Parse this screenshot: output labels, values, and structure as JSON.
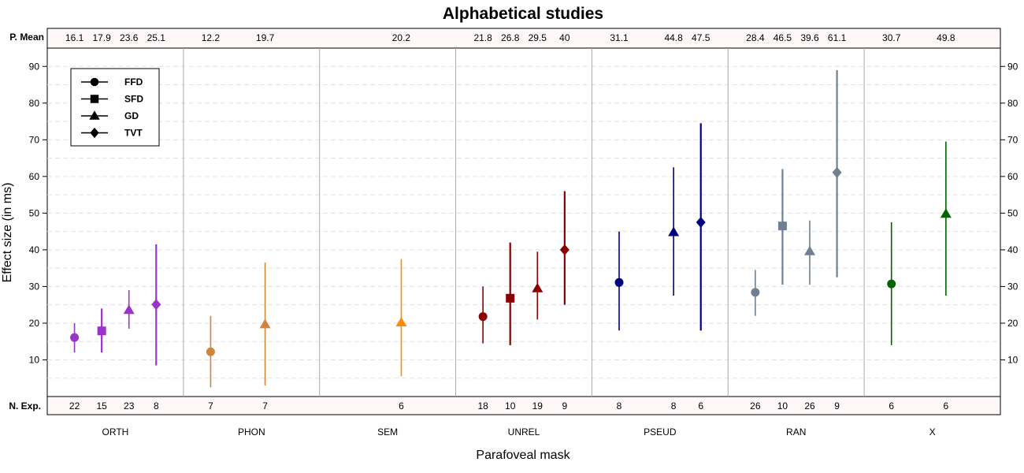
{
  "chart_data": {
    "type": "scatter",
    "title": "Alphabetical studies",
    "xlabel": "Parafoveal mask",
    "ylabel": "Effect size (in ms)",
    "ylim": [
      0,
      95
    ],
    "yticks": [
      10,
      20,
      30,
      40,
      50,
      60,
      70,
      80,
      90
    ],
    "grid": true,
    "legend_position": "top-left",
    "top_strip_label": "P. Mean",
    "bottom_strip_label": "N. Exp.",
    "legend": [
      {
        "label": "FFD",
        "marker": "circle"
      },
      {
        "label": "SFD",
        "marker": "square"
      },
      {
        "label": "GD",
        "marker": "triangle"
      },
      {
        "label": "TVT",
        "marker": "diamond"
      }
    ],
    "groups": [
      {
        "name": "ORTH",
        "color": "#9933cc",
        "points": [
          {
            "measure": "FFD",
            "mean": 16.1,
            "lower": 12,
            "upper": 20,
            "n": 22,
            "mean_label": "16.1",
            "n_label": "22"
          },
          {
            "measure": "SFD",
            "mean": 17.9,
            "lower": 12,
            "upper": 24,
            "n": 15,
            "mean_label": "17.9",
            "n_label": "15"
          },
          {
            "measure": "GD",
            "mean": 23.6,
            "lower": 18.5,
            "upper": 29,
            "n": 23,
            "mean_label": "23.6",
            "n_label": "23"
          },
          {
            "measure": "TVT",
            "mean": 25.1,
            "lower": 8.5,
            "upper": 41.5,
            "n": 8,
            "mean_label": "25.1",
            "n_label": "8"
          }
        ]
      },
      {
        "name": "PHON",
        "color": "#cd853f",
        "points": [
          {
            "measure": "FFD",
            "mean": 12.2,
            "lower": 2.5,
            "upper": 22,
            "n": 7,
            "mean_label": "12.2",
            "n_label": "7"
          },
          {
            "measure": "GD",
            "mean": 19.7,
            "lower": 3,
            "upper": 36.5,
            "n": 7,
            "mean_label": "19.7",
            "n_label": "7"
          }
        ]
      },
      {
        "name": "SEM",
        "color": "#ff8c00",
        "points": [
          {
            "measure": "GD",
            "mean": 20.2,
            "lower": 5.5,
            "upper": 37.5,
            "n": 6,
            "mean_label": "20.2",
            "n_label": "6"
          }
        ]
      },
      {
        "name": "UNREL",
        "color": "#8b0000",
        "points": [
          {
            "measure": "FFD",
            "mean": 21.8,
            "lower": 14.5,
            "upper": 30,
            "n": 18,
            "mean_label": "21.8",
            "n_label": "18"
          },
          {
            "measure": "SFD",
            "mean": 26.8,
            "lower": 14,
            "upper": 42,
            "n": 10,
            "mean_label": "26.8",
            "n_label": "10"
          },
          {
            "measure": "GD",
            "mean": 29.5,
            "lower": 21,
            "upper": 39.5,
            "n": 19,
            "mean_label": "29.5",
            "n_label": "19"
          },
          {
            "measure": "TVT",
            "mean": 40,
            "lower": 25,
            "upper": 56,
            "n": 9,
            "mean_label": "40",
            "n_label": "9"
          }
        ]
      },
      {
        "name": "PSEUD",
        "color": "#000080",
        "points": [
          {
            "measure": "FFD",
            "mean": 31.1,
            "lower": 18,
            "upper": 45,
            "n": 8,
            "mean_label": "31.1",
            "n_label": "8"
          },
          {
            "measure": "GD",
            "mean": 44.8,
            "lower": 27.5,
            "upper": 62.5,
            "n": 8,
            "mean_label": "44.8",
            "n_label": "8"
          },
          {
            "measure": "TVT",
            "mean": 47.5,
            "lower": 18,
            "upper": 74.5,
            "n": 6,
            "mean_label": "47.5",
            "n_label": "6"
          }
        ]
      },
      {
        "name": "RAN",
        "color": "#708090",
        "points": [
          {
            "measure": "FFD",
            "mean": 28.4,
            "lower": 22,
            "upper": 34.5,
            "n": 26,
            "mean_label": "28.4",
            "n_label": "26"
          },
          {
            "measure": "SFD",
            "mean": 46.5,
            "lower": 30.5,
            "upper": 62,
            "n": 10,
            "mean_label": "46.5",
            "n_label": "10"
          },
          {
            "measure": "GD",
            "mean": 39.6,
            "lower": 30.5,
            "upper": 48,
            "n": 26,
            "mean_label": "39.6",
            "n_label": "26"
          },
          {
            "measure": "TVT",
            "mean": 61.1,
            "lower": 32.5,
            "upper": 89,
            "n": 9,
            "mean_label": "61.1",
            "n_label": "9"
          }
        ]
      },
      {
        "name": "X",
        "color": "#006400",
        "points": [
          {
            "measure": "FFD",
            "mean": 30.7,
            "lower": 14,
            "upper": 47.5,
            "n": 6,
            "mean_label": "30.7",
            "n_label": "6"
          },
          {
            "measure": "GD",
            "mean": 49.8,
            "lower": 27.5,
            "upper": 69.5,
            "n": 6,
            "mean_label": "49.8",
            "n_label": "6"
          }
        ]
      }
    ]
  }
}
